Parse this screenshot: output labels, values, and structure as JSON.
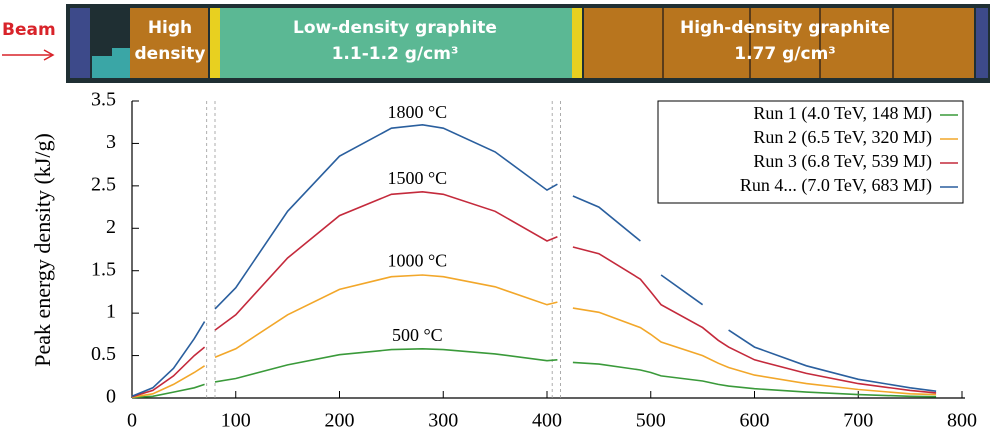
{
  "schematic": {
    "beam": "Beam",
    "high_density": [
      "High",
      "density"
    ],
    "low_density": [
      "Low-density graphite",
      "1.1-1.2 g/cm³"
    ],
    "high_density_graphite": [
      "High-density graphite",
      "1.77 g/cm³"
    ]
  },
  "chart_data": {
    "type": "line",
    "ylabel": "Peak energy density (kJ/g)",
    "x": [
      0,
      20,
      40,
      60,
      70,
      75,
      80,
      100,
      150,
      200,
      250,
      280,
      300,
      350,
      400,
      410,
      418,
      425,
      450,
      490,
      500,
      510,
      550,
      565,
      575,
      600,
      650,
      700,
      750,
      775
    ],
    "series": [
      {
        "name": "Run 1 (4.0 TeV, 148 MJ)",
        "color": "#3a9a3a",
        "values": [
          0.005,
          0.02,
          0.07,
          0.12,
          0.16,
          null,
          0.19,
          0.23,
          0.39,
          0.51,
          0.57,
          0.58,
          0.57,
          0.52,
          0.44,
          0.45,
          null,
          0.42,
          0.4,
          0.33,
          0.3,
          0.26,
          0.2,
          0.16,
          0.14,
          0.11,
          0.07,
          0.04,
          0.02,
          0.015
        ]
      },
      {
        "name": "Run 2 (6.5 TeV, 320 MJ)",
        "color": "#f2a72a",
        "values": [
          0.01,
          0.05,
          0.16,
          0.3,
          0.38,
          null,
          0.48,
          0.58,
          0.98,
          1.28,
          1.43,
          1.45,
          1.43,
          1.31,
          1.1,
          1.13,
          null,
          1.06,
          1.01,
          0.83,
          0.75,
          0.66,
          0.5,
          0.41,
          0.36,
          0.27,
          0.17,
          0.1,
          0.05,
          0.04
        ]
      },
      {
        "name": "Run 3 (6.8 TeV, 539 MJ)",
        "color": "#c42a3c",
        "values": [
          0.015,
          0.09,
          0.26,
          0.5,
          0.6,
          null,
          0.8,
          0.98,
          1.65,
          2.15,
          2.4,
          2.43,
          2.4,
          2.2,
          1.85,
          1.9,
          null,
          1.78,
          1.7,
          1.4,
          1.25,
          1.1,
          0.83,
          0.68,
          0.6,
          0.45,
          0.29,
          0.17,
          0.09,
          0.06
        ]
      },
      {
        "name": "Run 4... (7.0 TeV, 683 MJ)",
        "color": "#2a5f9e",
        "values": [
          0.02,
          0.12,
          0.35,
          0.7,
          0.9,
          null,
          1.05,
          1.3,
          2.2,
          2.85,
          3.18,
          3.22,
          3.18,
          2.9,
          2.45,
          2.52,
          null,
          2.38,
          2.25,
          1.85,
          null,
          1.45,
          1.1,
          null,
          0.8,
          0.6,
          0.38,
          0.22,
          0.12,
          0.08
        ]
      }
    ],
    "annotations": [
      {
        "text": "1800 °C",
        "x": 275,
        "y": 3.35
      },
      {
        "text": "1500 °C",
        "x": 275,
        "y": 2.57
      },
      {
        "text": "1000 °C",
        "x": 275,
        "y": 1.6
      },
      {
        "text": "500 °C",
        "x": 275,
        "y": 0.72
      }
    ],
    "vlines": [
      72,
      80,
      405,
      413
    ],
    "xlim": [
      0,
      800
    ],
    "xticks": [
      0,
      100,
      200,
      300,
      400,
      500,
      600,
      700,
      800
    ],
    "ylim": [
      0,
      3.5
    ],
    "yticks": [
      0,
      0.5,
      1,
      1.5,
      2,
      2.5,
      3,
      3.5
    ],
    "legend": "upper right"
  }
}
